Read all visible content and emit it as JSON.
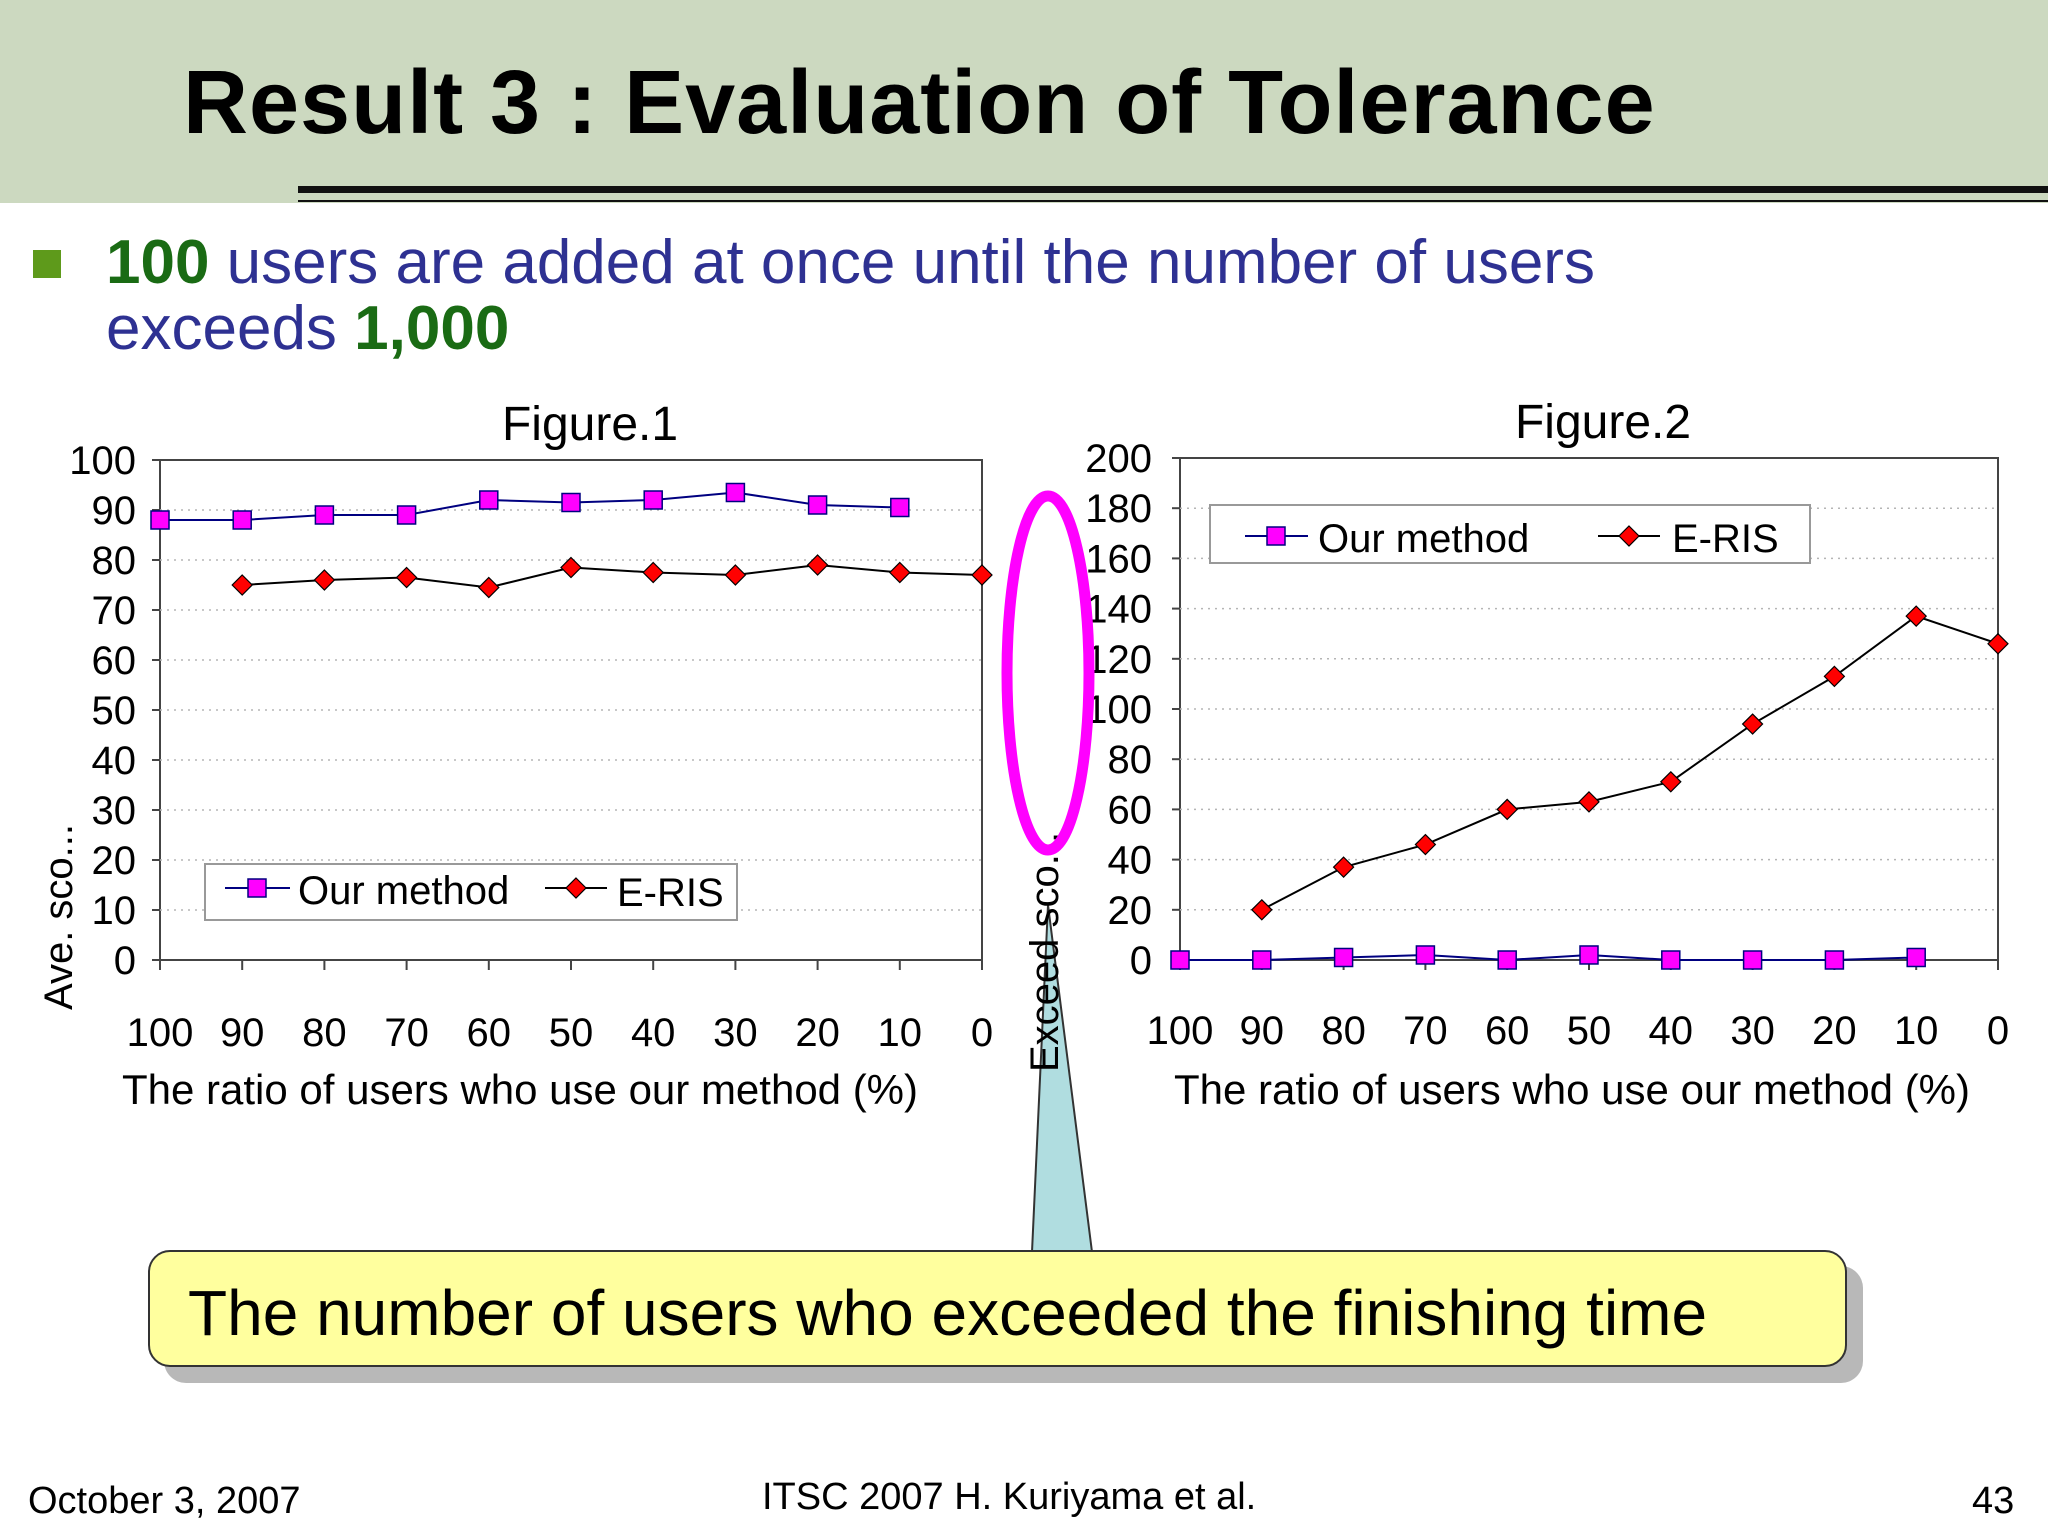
{
  "slide": {
    "title": "Result 3 : Evaluation of Tolerance",
    "bullet": {
      "part1_num": "100",
      "part1_text": " users are added at once until the number of users",
      "part2_text": "exceeds ",
      "part2_num": "1,000"
    },
    "callout": "The number of users who exceeded the finishing time",
    "footer": {
      "date": "October 3, 2007",
      "center": "ITSC 2007 H. Kuriyama et al.",
      "page": "43"
    },
    "colors": {
      "header_band": "#ccd9c0",
      "bullet_text": "#2e3192",
      "bullet_highlight": "#1a6b14",
      "our_method": "#ff00ff",
      "eris": "#ff0000",
      "ellipse": "#ff00ff",
      "pointer": "#b0dde0",
      "callout_fill": "#ffff9e"
    }
  },
  "chart_data": [
    {
      "type": "line",
      "title": "Figure.1",
      "xlabel": "The ratio of users who use our method (%)",
      "ylabel": "Ave. sco...",
      "x": [
        100,
        90,
        80,
        70,
        60,
        50,
        40,
        30,
        20,
        10,
        0
      ],
      "ylim": [
        0,
        100
      ],
      "yticks": [
        0,
        10,
        20,
        30,
        40,
        50,
        60,
        70,
        80,
        90,
        100
      ],
      "grid": "horizontal dotted",
      "legend": "bottom-left",
      "series": [
        {
          "name": "Our method",
          "marker": "square",
          "values": [
            88,
            88,
            89,
            89,
            92,
            91.5,
            92,
            93.5,
            91,
            90.5,
            null
          ]
        },
        {
          "name": "E-RIS",
          "marker": "diamond",
          "values": [
            null,
            75,
            76,
            76.5,
            74.5,
            78.5,
            77.5,
            77,
            79,
            77.5,
            77
          ]
        }
      ]
    },
    {
      "type": "line",
      "title": "Figure.2",
      "xlabel": "The ratio of users who use our method (%)",
      "ylabel": "Exceed sco...",
      "x": [
        100,
        90,
        80,
        70,
        60,
        50,
        40,
        30,
        20,
        10,
        0
      ],
      "ylim": [
        0,
        200
      ],
      "yticks": [
        0,
        20,
        40,
        60,
        80,
        100,
        120,
        140,
        160,
        180,
        200
      ],
      "grid": "horizontal dotted",
      "legend": "top-left",
      "series": [
        {
          "name": "Our method",
          "marker": "square",
          "values": [
            0,
            0,
            1,
            2,
            0,
            2,
            0,
            0,
            0,
            1,
            null
          ]
        },
        {
          "name": "E-RIS",
          "marker": "diamond",
          "values": [
            null,
            20,
            37,
            46,
            60,
            63,
            71,
            94,
            113,
            137,
            126
          ]
        }
      ]
    }
  ]
}
